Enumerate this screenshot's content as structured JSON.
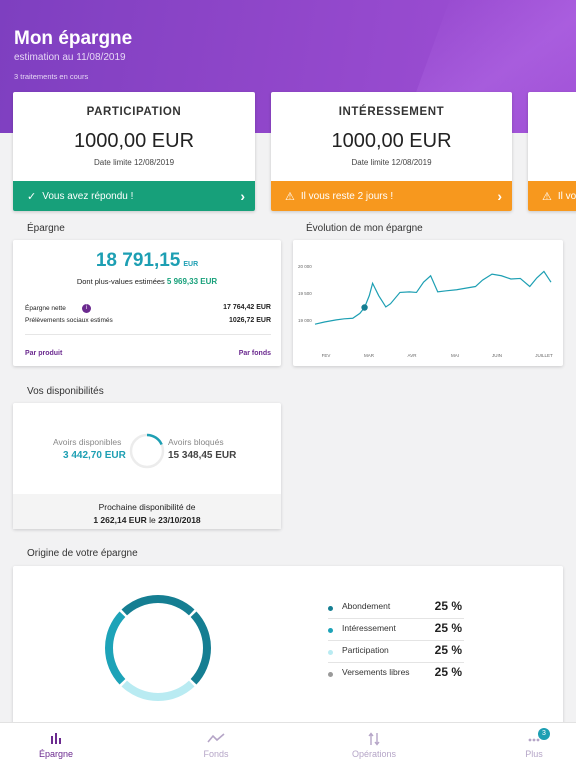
{
  "header": {
    "title": "Mon épargne",
    "estimation": "estimation au 11/08/2019",
    "traitements": "3 traitements en cours"
  },
  "plans": [
    {
      "title": "PARTICIPATION",
      "amount": "1000,00 EUR",
      "date": "Date limite 12/08/2019",
      "status": "Vous avez répondu !",
      "status_color": "#17a07a"
    },
    {
      "title": "INTÉRESSEMENT",
      "amount": "1000,00 EUR",
      "date": "Date limite 12/08/2019",
      "status": "Il vous reste 2 jours !",
      "status_color": "#f7981e"
    },
    {
      "status": "Il vous",
      "status_color": "#f7981e"
    }
  ],
  "epargne": {
    "section_title": "Épargne",
    "total": "18 791,15",
    "currency": "EUR",
    "plus_values_label": "Dont plus-values estimées",
    "plus_values": "5 969,33 EUR",
    "nette_label": "Épargne nette",
    "nette_value": "17 764,42 EUR",
    "prelev_label": "Prélèvements sociaux estimés",
    "prelev_value": "1026,72 EUR",
    "link_produit": "Par produit",
    "link_fonds": "Par fonds"
  },
  "evolution": {
    "section_title": "Évolution de mon épargne"
  },
  "chart_data": {
    "type": "line",
    "title": "Évolution de mon épargne",
    "x_labels": [
      "FEV",
      "MAR",
      "AVR",
      "MAI",
      "JUIN",
      "JUILLET"
    ],
    "y_ticks": [
      "20 000",
      "19 500",
      "19 000"
    ],
    "y_tick_values": [
      20000,
      19500,
      19000
    ],
    "ylim": [
      18700,
      20150
    ],
    "x": [
      0,
      0.2,
      0.45,
      0.62,
      0.8,
      0.95,
      1.05,
      1.15,
      1.22,
      1.35,
      1.5,
      1.6,
      1.8,
      2.0,
      2.15,
      2.3,
      2.45,
      2.6,
      2.78,
      3.0,
      3.2,
      3.4,
      3.55,
      3.75,
      3.95,
      4.15,
      4.35,
      4.55,
      4.7,
      4.85,
      5.0
    ],
    "values": [
      18920,
      18960,
      19000,
      19020,
      19030,
      19120,
      19230,
      19450,
      19680,
      19450,
      19240,
      19300,
      19510,
      19520,
      19510,
      19700,
      19820,
      19520,
      19540,
      19560,
      19590,
      19620,
      19740,
      19850,
      19820,
      19760,
      19770,
      19620,
      19780,
      19900,
      19700
    ],
    "highlight_point": {
      "x": 1.05,
      "y": 19230
    },
    "grid": false
  },
  "disponibilites": {
    "section_title": "Vos disponibilités",
    "dispo_label": "Avoirs disponibles",
    "dispo_value": "3 442,70 EUR",
    "bloques_label": "Avoirs bloqués",
    "bloques_value": "15 348,45 EUR",
    "dispo_fraction": 0.183,
    "next_label": "Prochaine disponibilité de",
    "next_amount": "1 262,14 EUR",
    "next_connector": "le",
    "next_date": "23/10/2018"
  },
  "origine": {
    "section_title": "Origine de votre épargne",
    "items": [
      {
        "name": "Abondement",
        "pct": "25 %",
        "color": "#157e92"
      },
      {
        "name": "Intéressement",
        "pct": "25 %",
        "color": "#1da3b8"
      },
      {
        "name": "Participation",
        "pct": "25 %",
        "color": "#b9ebf2"
      },
      {
        "name": "Versements libres",
        "pct": "25 %",
        "color": "#9a9a9a"
      }
    ]
  },
  "tabs": [
    {
      "label": "Épargne",
      "icon": "bar-chart-icon",
      "active": true
    },
    {
      "label": "Fonds",
      "icon": "trend-line-icon",
      "active": false
    },
    {
      "label": "Opérations",
      "icon": "transfer-arrows-icon",
      "active": false
    },
    {
      "label": "Plus",
      "icon": "more-dots-icon",
      "active": false,
      "badge": "3"
    }
  ],
  "colors": {
    "primary": "#6b2a8f",
    "accent": "#1d9fb3",
    "success": "#17a07a",
    "warning": "#f7981e"
  }
}
